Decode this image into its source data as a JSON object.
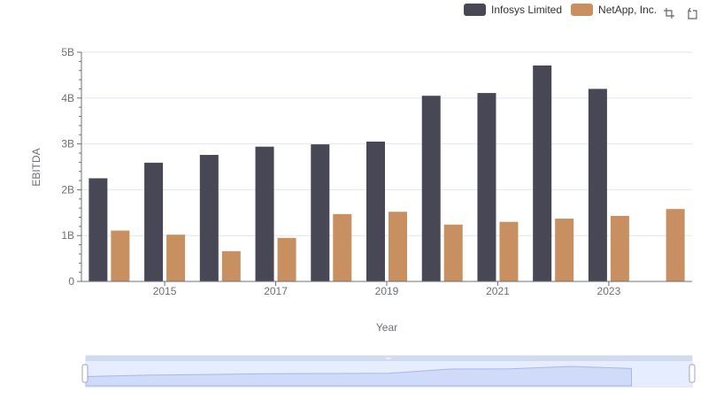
{
  "chart_data": {
    "type": "bar",
    "title": "",
    "xlabel": "Year",
    "ylabel": "EBITDA",
    "x": [
      2014,
      2015,
      2016,
      2017,
      2018,
      2019,
      2020,
      2021,
      2022,
      2023,
      2024
    ],
    "x_tick_labels": [
      "2015",
      "2017",
      "2019",
      "2021",
      "2023"
    ],
    "y_tick_labels": [
      "0",
      "1B",
      "2B",
      "3B",
      "4B",
      "5B"
    ],
    "ylim": [
      0,
      5000000000
    ],
    "grid": true,
    "legend_position": "top-right",
    "series": [
      {
        "name": "Infosys Limited",
        "color": "#474755",
        "values": [
          2250000000,
          2590000000,
          2760000000,
          2940000000,
          2990000000,
          3050000000,
          4050000000,
          4110000000,
          4710000000,
          4200000000,
          null
        ]
      },
      {
        "name": "NetApp, Inc.",
        "color": "#c89060",
        "values": [
          1110000000,
          1020000000,
          660000000,
          950000000,
          1470000000,
          1520000000,
          1240000000,
          1300000000,
          1370000000,
          1430000000,
          1580000000
        ]
      }
    ]
  },
  "toolbox": {
    "zoom_icon": "zoom-select-icon",
    "reset_icon": "zoom-reset-icon"
  }
}
